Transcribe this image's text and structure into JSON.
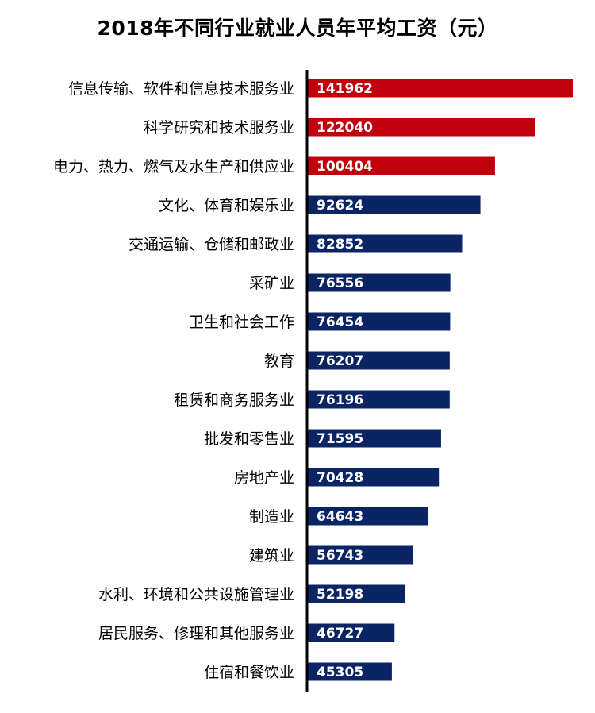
{
  "chart_data": {
    "type": "bar",
    "orientation": "horizontal",
    "title": "2018年不同行业就业人员年平均工资（元）",
    "xlabel": "",
    "ylabel": "",
    "grid": false,
    "legend": "none",
    "xlim": [
      0,
      144500
    ],
    "categories": [
      "信息传输、软件和信息技术服务业",
      "科学研究和技术服务业",
      "电力、热力、燃气及水生产和供应业",
      "文化、体育和娱乐业",
      "交通运输、仓储和邮政业",
      "采矿业",
      "卫生和社会工作",
      "教育",
      "租赁和商务服务业",
      "批发和零售业",
      "房地产业",
      "制造业",
      "建筑业",
      "水利、环境和公共设施管理业",
      "居民服务、修理和其他服务业",
      "住宿和餐饮业"
    ],
    "values": [
      141962,
      122040,
      100404,
      92624,
      82852,
      76556,
      76454,
      76207,
      76196,
      71595,
      70428,
      64643,
      56743,
      52198,
      46727,
      45305
    ],
    "highlight_count": 3,
    "colors": {
      "highlight": "#c0000b",
      "default": "#0b2463",
      "axis": "#000000",
      "value_text": "#ffffff"
    }
  }
}
